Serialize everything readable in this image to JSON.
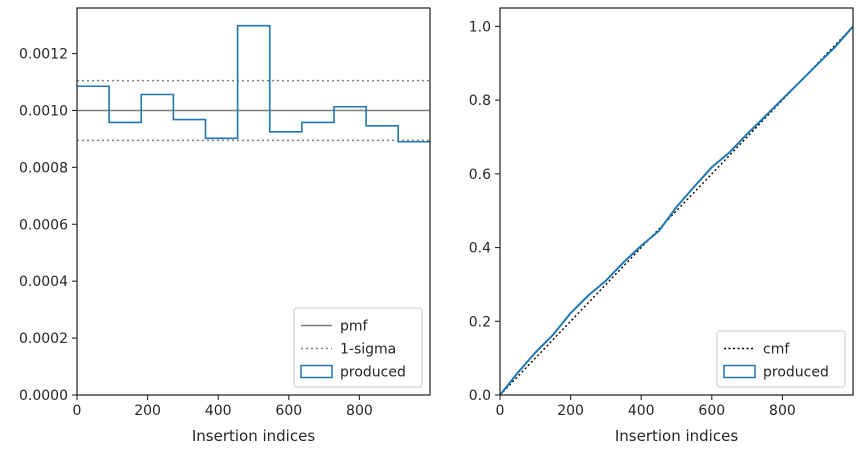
{
  "chart_data": [
    {
      "type": "histogram",
      "xlabel": "Insertion indices",
      "ylabel": "",
      "xlim": [
        0,
        1000
      ],
      "ylim": [
        0,
        0.00136
      ],
      "xticks": [
        0,
        200,
        400,
        600,
        800
      ],
      "yticks": [
        0,
        0.0002,
        0.0004,
        0.0006,
        0.0008,
        0.001,
        0.0012
      ],
      "xtick_labels": [
        "0",
        "200",
        "400",
        "600",
        "800"
      ],
      "ytick_labels": [
        "0.0000",
        "0.0002",
        "0.0004",
        "0.0006",
        "0.0008",
        "0.0010",
        "0.0012"
      ],
      "bin_edges": [
        0,
        91,
        182,
        273,
        364,
        455,
        546,
        637,
        728,
        819,
        910,
        1000
      ],
      "series": [
        {
          "name": "produced",
          "kind": "step",
          "color": "#1f77b4",
          "values": [
            0.001085,
            0.000958,
            0.001056,
            0.000968,
            0.000902,
            0.001298,
            0.000925,
            0.000958,
            0.001013,
            0.000946,
            0.00089
          ]
        }
      ],
      "reference_lines": [
        {
          "name": "pmf",
          "value": 0.001,
          "style": "solid",
          "color": "#808080"
        },
        {
          "name": "1-sigma",
          "values": [
            0.001105,
            0.000895
          ],
          "style": "dotted",
          "color": "#808080"
        }
      ],
      "legend": {
        "position": "lower-right",
        "entries": [
          "pmf",
          "1-sigma",
          "produced"
        ]
      }
    },
    {
      "type": "line",
      "xlabel": "Insertion indices",
      "ylabel": "",
      "xlim": [
        0,
        1000
      ],
      "ylim": [
        0,
        1.05
      ],
      "xticks": [
        0,
        200,
        400,
        600,
        800
      ],
      "yticks": [
        0,
        0.2,
        0.4,
        0.6,
        0.8,
        1.0
      ],
      "xtick_labels": [
        "0",
        "200",
        "400",
        "600",
        "800"
      ],
      "ytick_labels": [
        "0.0",
        "0.2",
        "0.4",
        "0.6",
        "0.8",
        "1.0"
      ],
      "series": [
        {
          "name": "cmf",
          "style": "dotted",
          "color": "#000000",
          "x": [
            0,
            1000
          ],
          "y": [
            0,
            1.0
          ]
        },
        {
          "name": "produced",
          "style": "solid",
          "color": "#1f77b4",
          "x": [
            0,
            50,
            100,
            150,
            200,
            250,
            300,
            350,
            400,
            450,
            500,
            550,
            600,
            650,
            700,
            750,
            800,
            850,
            900,
            950,
            1000
          ],
          "y": [
            0,
            0.06,
            0.115,
            0.163,
            0.222,
            0.27,
            0.31,
            0.36,
            0.405,
            0.445,
            0.51,
            0.565,
            0.618,
            0.658,
            0.708,
            0.755,
            0.803,
            0.85,
            0.898,
            0.945,
            1.0
          ]
        }
      ],
      "legend": {
        "position": "lower-right",
        "entries": [
          "cmf",
          "produced"
        ]
      }
    }
  ]
}
